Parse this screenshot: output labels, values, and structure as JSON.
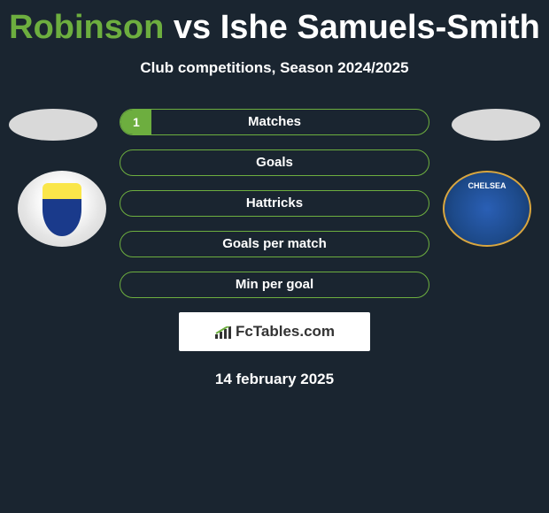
{
  "title": {
    "player1_color": "#6dae3f",
    "player1": "Robinson",
    "vs": "vs",
    "player2": "Ishe Samuels-Smith"
  },
  "subtitle": "Club competitions, Season 2024/2025",
  "colors": {
    "background": "#1a2530",
    "accent": "#6dae3f",
    "text": "#ffffff",
    "bar_border": "#6dae3f"
  },
  "stats": [
    {
      "label": "Matches",
      "left_value": "1",
      "left_width_pct": 10
    },
    {
      "label": "Goals",
      "left_value": "",
      "left_width_pct": 0
    },
    {
      "label": "Hattricks",
      "left_value": "",
      "left_width_pct": 0
    },
    {
      "label": "Goals per match",
      "left_value": "",
      "left_width_pct": 0
    },
    {
      "label": "Min per goal",
      "left_value": "",
      "left_width_pct": 0
    }
  ],
  "footer_brand": "FcTables.com",
  "date": "14 february 2025",
  "crests": {
    "left_alt": "sutton-crest",
    "right_alt": "chelsea-crest"
  }
}
